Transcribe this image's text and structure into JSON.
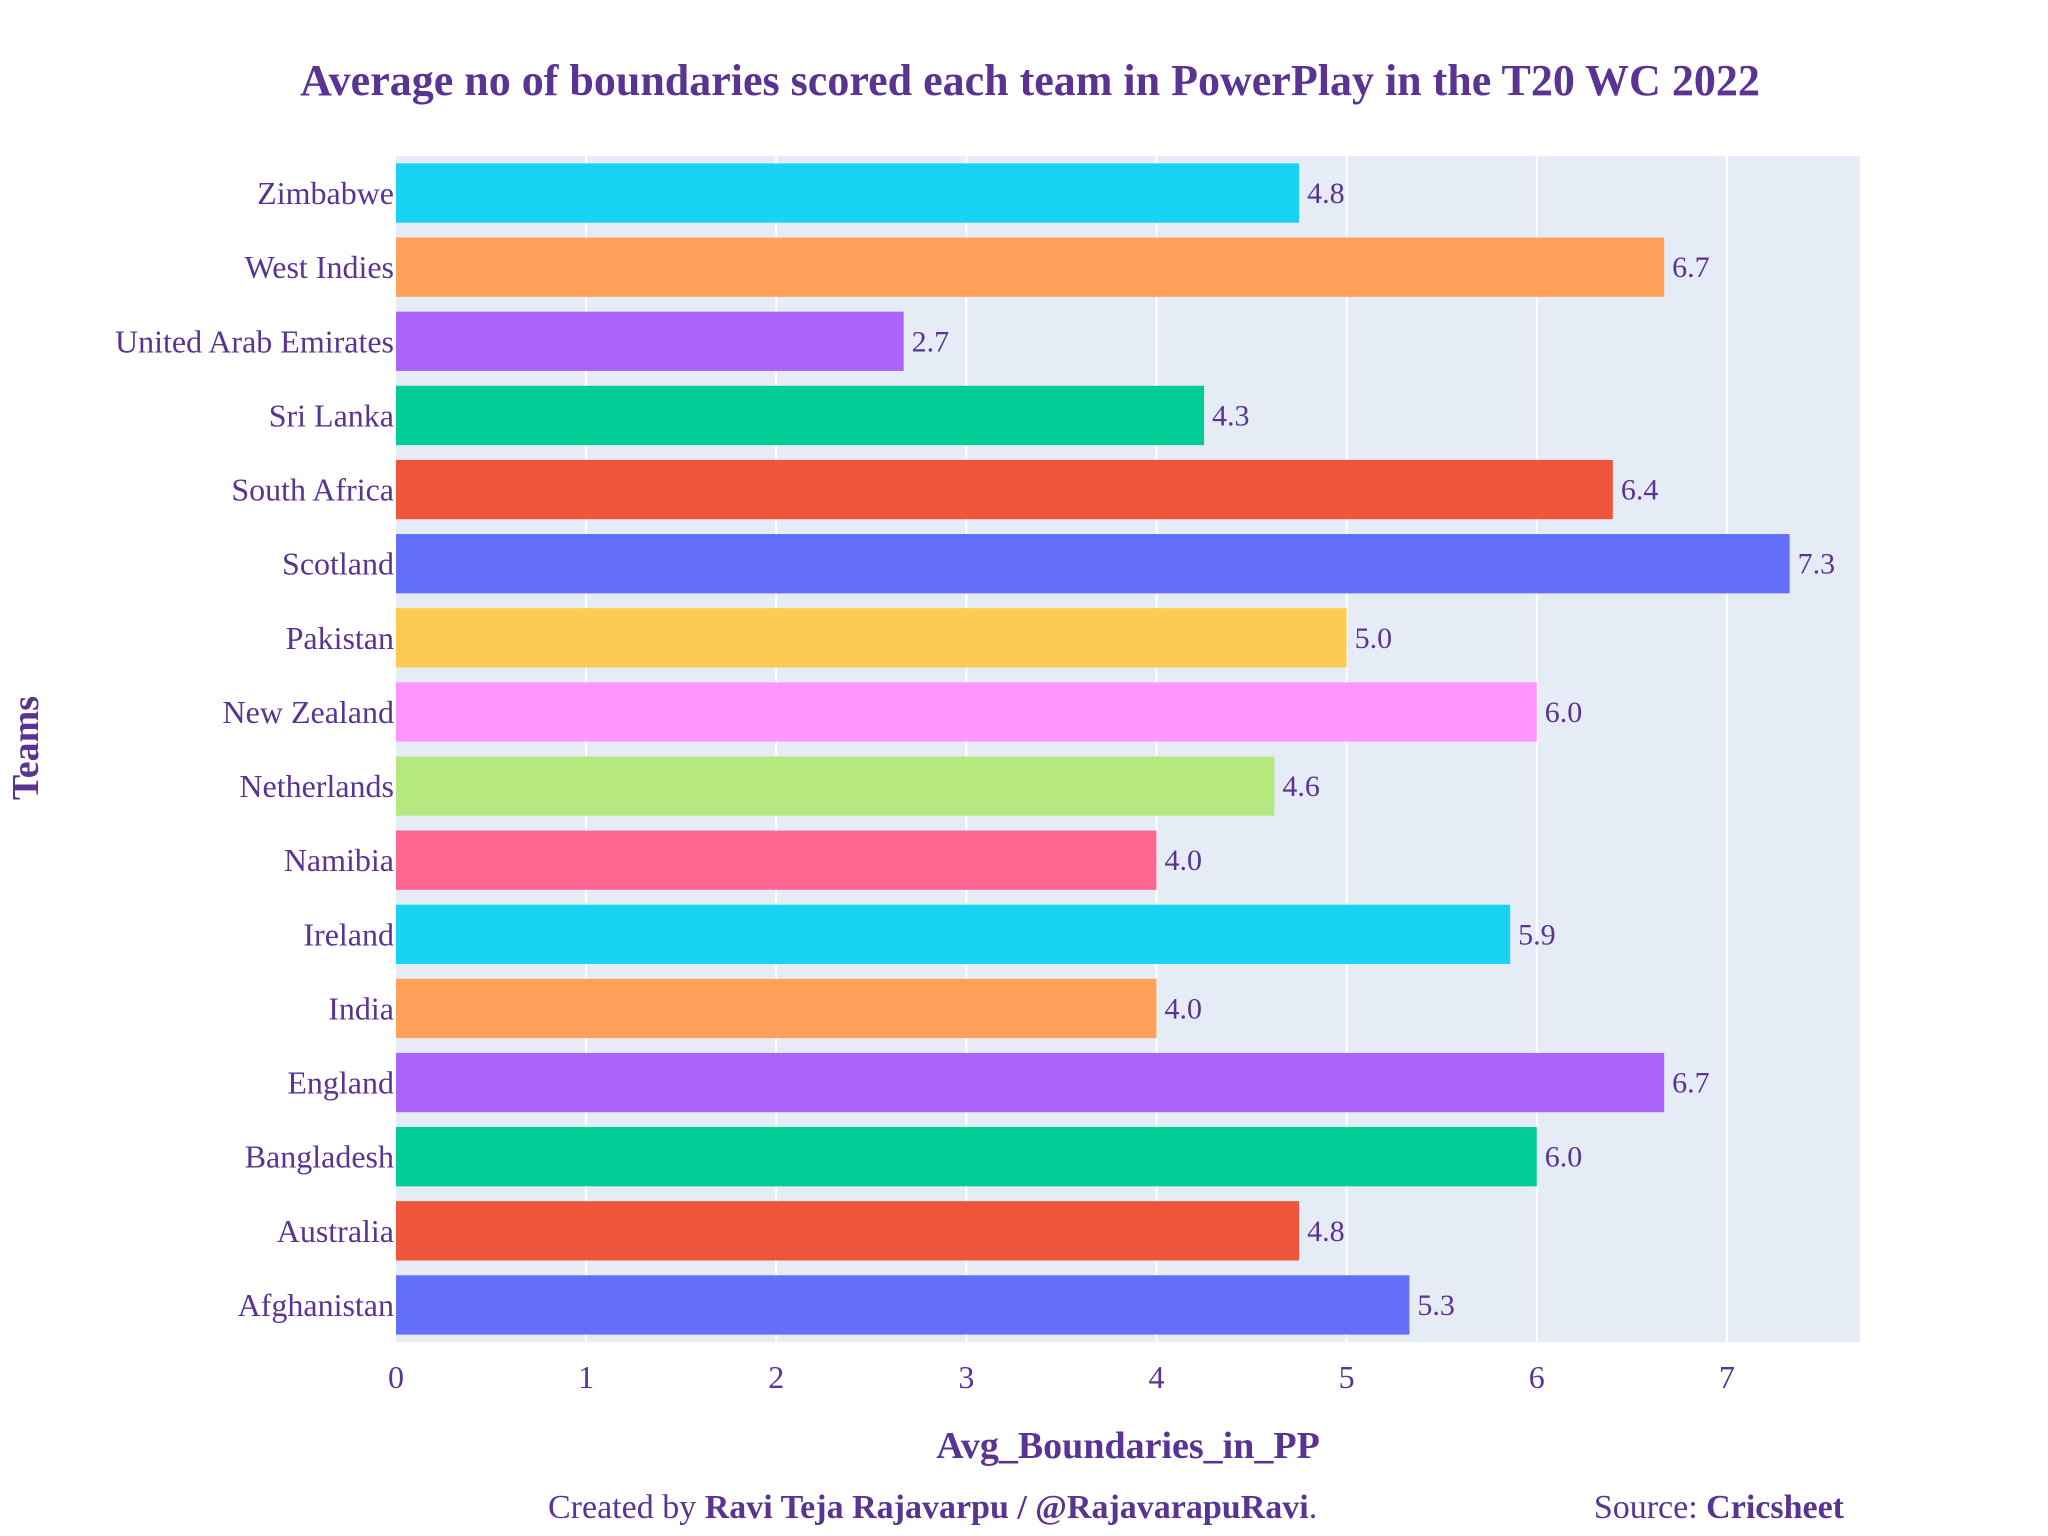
{
  "chart_data": {
    "type": "bar",
    "orientation": "horizontal",
    "title": "Average no of boundaries scored each team in PowerPlay in the T20 WC 2022",
    "xlabel": "Avg_Boundaries_in_PP",
    "ylabel": "Teams",
    "xlim": [
      0,
      7.7
    ],
    "xticks": [
      0,
      1,
      2,
      3,
      4,
      5,
      6,
      7
    ],
    "grid": true,
    "categories": [
      "Zimbabwe",
      "West Indies",
      "United Arab Emirates",
      "Sri Lanka",
      "South Africa",
      "Scotland",
      "Pakistan",
      "New Zealand",
      "Netherlands",
      "Namibia",
      "Ireland",
      "India",
      "England",
      "Bangladesh",
      "Australia",
      "Afghanistan"
    ],
    "values": [
      4.75,
      6.67,
      2.67,
      4.25,
      6.4,
      7.33,
      5.0,
      6.0,
      4.62,
      4.0,
      5.86,
      4.0,
      6.67,
      6.0,
      4.75,
      5.33
    ],
    "data_labels": [
      "4.8",
      "6.7",
      "2.7",
      "4.3",
      "6.4",
      "7.3",
      "5.0",
      "6.0",
      "4.6",
      "4.0",
      "5.9",
      "4.0",
      "6.7",
      "6.0",
      "4.8",
      "5.3"
    ],
    "colors": [
      "#19d3f3",
      "#ffa15a",
      "#ab63fa",
      "#00cc96",
      "#ef553b",
      "#636efa",
      "#fecb52",
      "#ff97ff",
      "#b6e880",
      "#ff6692",
      "#19d3f3",
      "#ffa15a",
      "#ab63fa",
      "#00cc96",
      "#ef553b",
      "#636efa"
    ],
    "plot_bg": "#e5ecf6",
    "text_color": "#5a3393"
  },
  "footer": {
    "created_prefix": "Created by ",
    "author": "Ravi Teja Rajavarpu / @RajavarapuRavi",
    "created_suffix": ".",
    "source_prefix": "Source: ",
    "source": "Cricsheet"
  }
}
